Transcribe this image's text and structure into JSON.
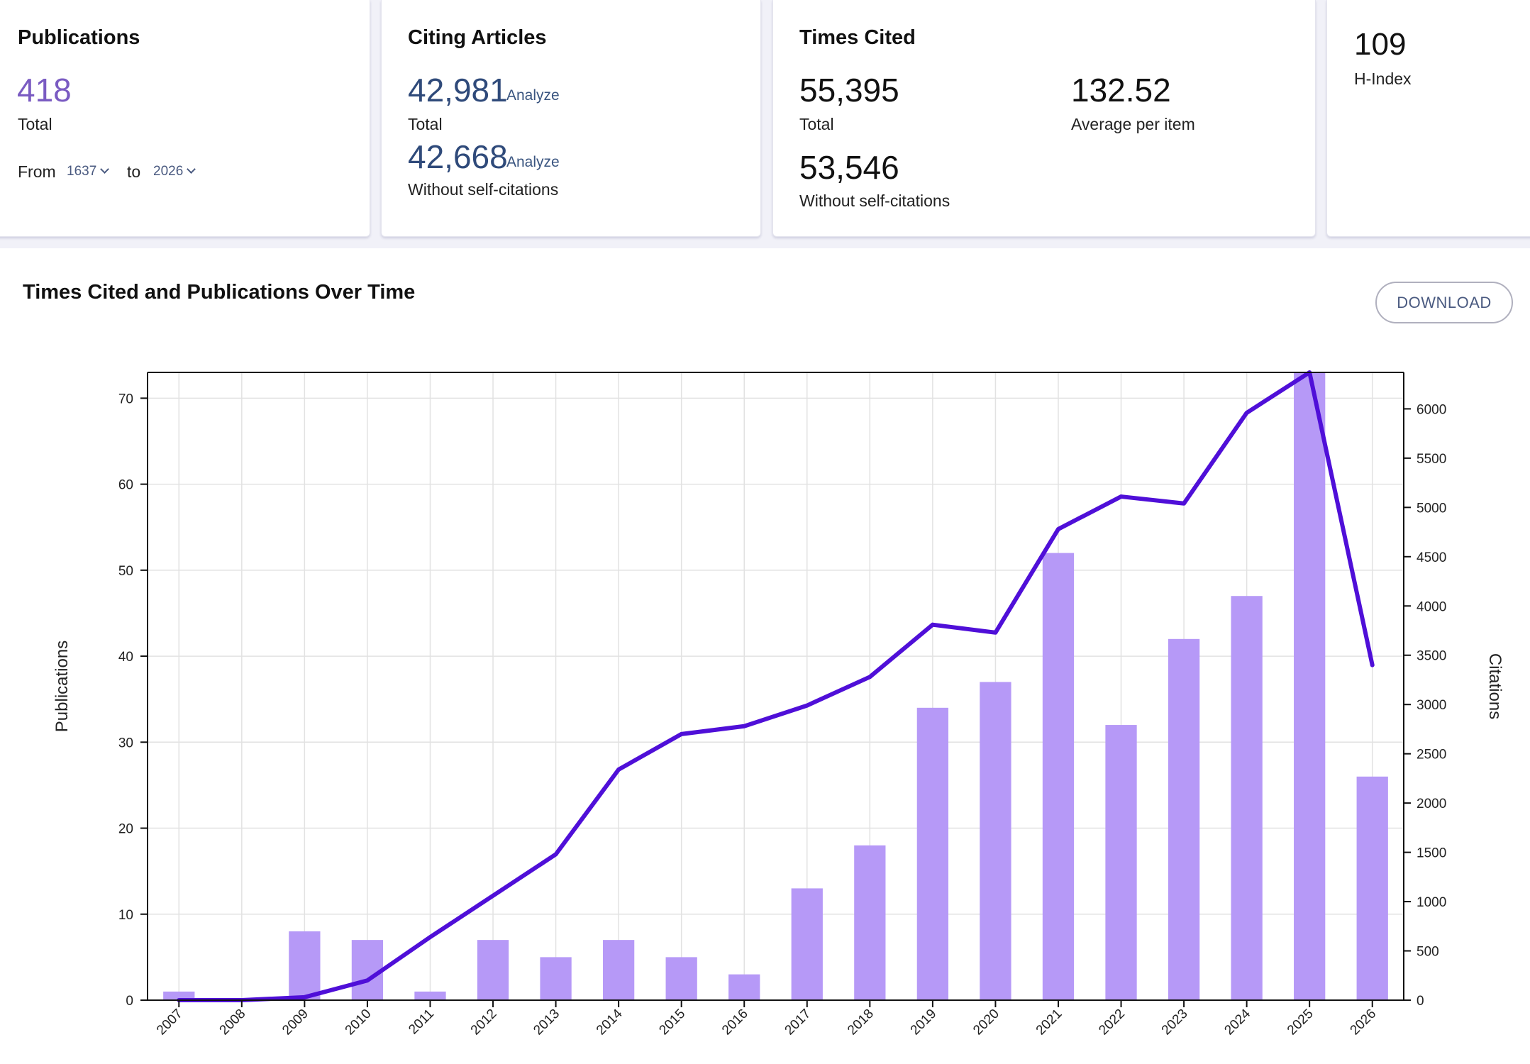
{
  "cards": {
    "publications": {
      "title": "Publications",
      "total_value": "418",
      "total_label": "Total",
      "from_label": "From",
      "from_year": "1637",
      "to_label": "to",
      "to_year": "2026"
    },
    "citing_articles": {
      "title": "Citing Articles",
      "total_value": "42,981",
      "total_analyze": "Analyze",
      "total_label": "Total",
      "without_value": "42,668",
      "without_analyze": "Analyze",
      "without_label": "Without self-citations"
    },
    "times_cited": {
      "title": "Times Cited",
      "total_value": "55,395",
      "total_label": "Total",
      "average_value": "132.52",
      "average_label": "Average per item",
      "without_value": "53,546",
      "without_label": "Without self-citations"
    },
    "h_index": {
      "value": "109",
      "label": "H-Index"
    }
  },
  "chart_section": {
    "title": "Times Cited and Publications Over Time",
    "download_label": "DOWNLOAD"
  },
  "colors": {
    "bar": "#b699f7",
    "line": "#4f0fd8",
    "grid": "#e2e2e2",
    "axis": "#111111"
  },
  "chart_data": {
    "type": "bar",
    "categories": [
      "2007",
      "2008",
      "2009",
      "2010",
      "2011",
      "2012",
      "2013",
      "2014",
      "2015",
      "2016",
      "2017",
      "2018",
      "2019",
      "2020",
      "2021",
      "2022",
      "2023",
      "2024",
      "2025",
      "2026"
    ],
    "series": [
      {
        "name": "Publications",
        "type": "bar",
        "axis": "left",
        "values": [
          1,
          0,
          8,
          7,
          1,
          7,
          5,
          7,
          5,
          3,
          13,
          18,
          34,
          37,
          52,
          32,
          42,
          47,
          73,
          26
        ]
      },
      {
        "name": "Citations",
        "type": "line",
        "axis": "right",
        "values": [
          0,
          0,
          30,
          200,
          640,
          1060,
          1480,
          2340,
          2700,
          2780,
          2990,
          3280,
          3810,
          3730,
          4780,
          5110,
          5040,
          5960,
          6370,
          3400
        ]
      }
    ],
    "ylabel": "Publications",
    "y2label": "Citations",
    "ylim": [
      0,
      73
    ],
    "y2lim": [
      0,
      6370
    ],
    "yticks": [
      0,
      10,
      20,
      30,
      40,
      50,
      60,
      70
    ],
    "y2ticks": [
      0,
      500,
      1000,
      1500,
      2000,
      2500,
      3000,
      3500,
      4000,
      4500,
      5000,
      5500,
      6000
    ],
    "grid": true
  }
}
